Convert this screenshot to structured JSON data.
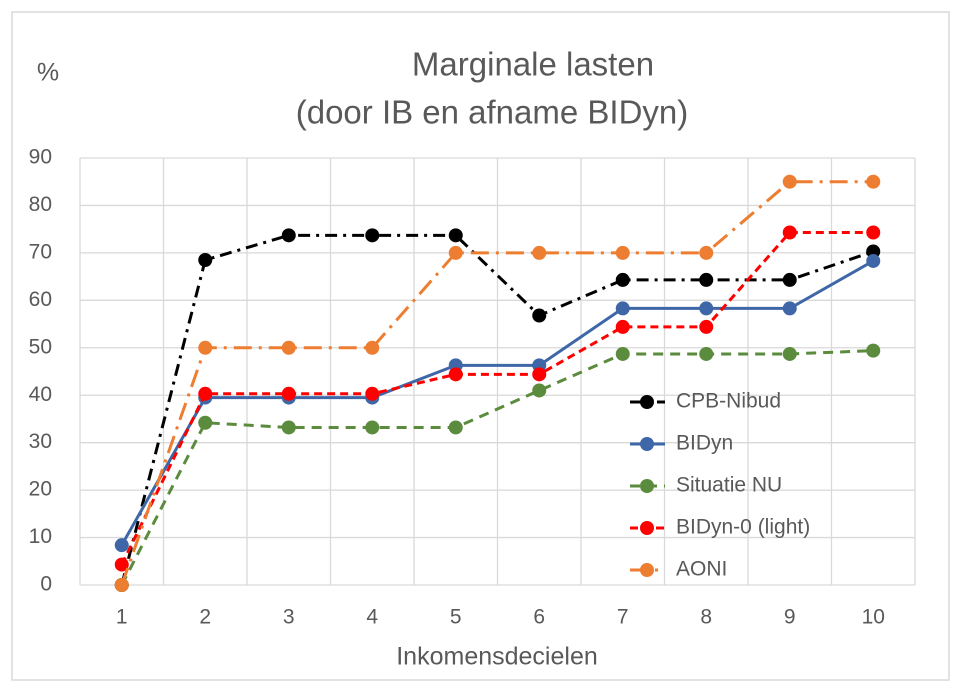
{
  "chart_data": {
    "type": "line",
    "title": [
      "Marginale lasten",
      "(door IB en afname BIDyn)"
    ],
    "y_axis_label": "%",
    "x_axis_label": "Inkomensdecielen",
    "categories": [
      "1",
      "2",
      "3",
      "4",
      "5",
      "6",
      "7",
      "8",
      "9",
      "10"
    ],
    "ylim": [
      0,
      90
    ],
    "yticks": [
      0,
      10,
      20,
      30,
      40,
      50,
      60,
      70,
      80,
      90
    ],
    "grid": true,
    "legend": "right",
    "series": [
      {
        "name": "CPB-Nibud",
        "color": "#000000",
        "dash": "12 6 3 6",
        "values": [
          0,
          68.5,
          73.7,
          73.7,
          73.7,
          56.8,
          64.3,
          64.3,
          64.3,
          70.3
        ]
      },
      {
        "name": "BIDyn",
        "color": "#3f67a8",
        "dash": "none",
        "values": [
          8.4,
          39.5,
          39.5,
          39.5,
          46.3,
          46.3,
          58.3,
          58.3,
          58.3,
          68.3
        ]
      },
      {
        "name": "Situatie NU",
        "color": "#5b8b3c",
        "dash": "10 7",
        "values": [
          0,
          34.2,
          33.2,
          33.2,
          33.2,
          41,
          48.7,
          48.7,
          48.7,
          49.4
        ]
      },
      {
        "name": "BIDyn-0 (light)",
        "color": "#ff0000",
        "dash": "8 5",
        "values": [
          4.3,
          40.3,
          40.3,
          40.3,
          44.4,
          44.4,
          54.4,
          54.4,
          74.3,
          74.3
        ]
      },
      {
        "name": "AONI",
        "color": "#ed7d31",
        "dash": "18 7 3 7",
        "values": [
          0,
          50,
          50,
          50,
          70,
          70,
          70,
          70,
          85,
          85
        ]
      }
    ]
  }
}
